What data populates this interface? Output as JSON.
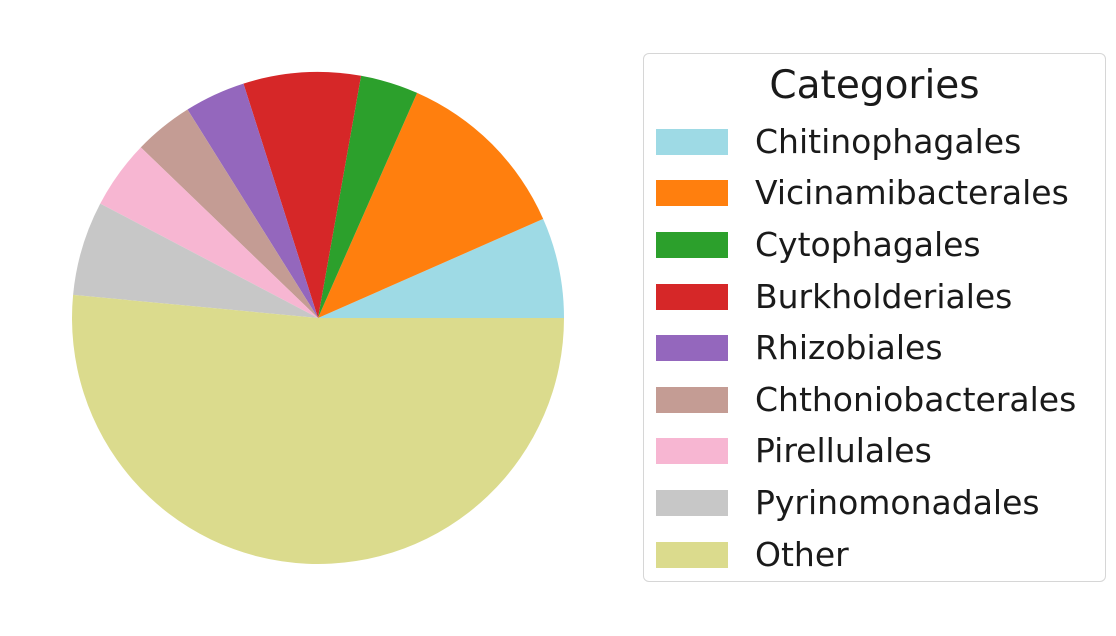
{
  "chart_data": {
    "type": "pie",
    "legend_title": "Categories",
    "legend_position": "right",
    "start_angle_deg": 0,
    "direction": "counterclockwise",
    "slices": [
      {
        "label": "Chitinophagales",
        "value": 6.6,
        "color": "#9edae5"
      },
      {
        "label": "Vicinamibacterales",
        "value": 11.8,
        "color": "#ff7f0e"
      },
      {
        "label": "Cytophagales",
        "value": 3.8,
        "color": "#2ca02c"
      },
      {
        "label": "Burkholderiales",
        "value": 7.7,
        "color": "#d62728"
      },
      {
        "label": "Rhizobiales",
        "value": 4.0,
        "color": "#9467bd"
      },
      {
        "label": "Chthoniobacterales",
        "value": 3.9,
        "color": "#c49c94"
      },
      {
        "label": "Pirellulales",
        "value": 4.5,
        "color": "#f7b6d2"
      },
      {
        "label": "Pyrinomonadales",
        "value": 6.2,
        "color": "#c7c7c7"
      },
      {
        "label": "Other",
        "value": 51.5,
        "color": "#dbdb8d"
      }
    ]
  }
}
